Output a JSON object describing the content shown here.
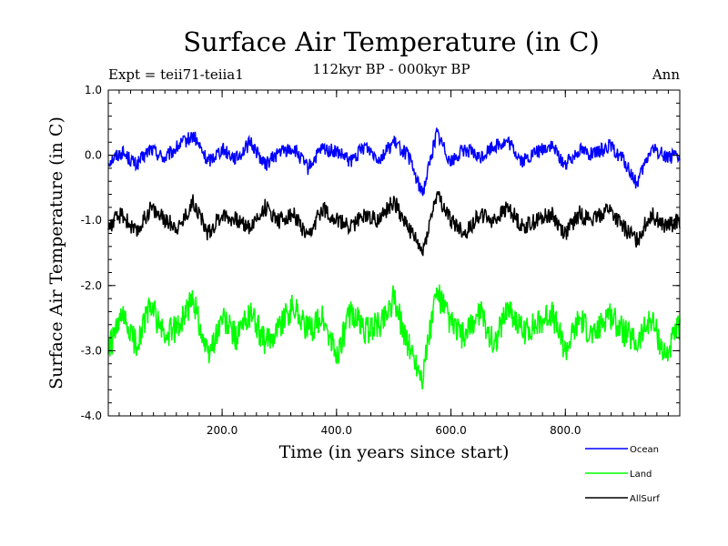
{
  "header": {
    "title": "Surface Air Temperature (in C)",
    "subtitle": "112kyr BP - 000kyr BP",
    "experiment": "Expt = teii71-teiia1",
    "period": "Ann"
  },
  "chart_data": {
    "type": "line",
    "title": "Surface Air Temperature (in C)",
    "subtitle": "112kyr BP - 000kyr BP",
    "xlabel": "Time (in years since start)",
    "ylabel": "Surface Air Temperature (in C)",
    "xlim": [
      1,
      1000
    ],
    "ylim": [
      -4.0,
      1.0
    ],
    "xticks": [
      200,
      400,
      600,
      800
    ],
    "xtick_labels": [
      "200.0",
      "400.0",
      "600.0",
      "800.0"
    ],
    "yticks": [
      1.0,
      0.0,
      -1.0,
      -2.0,
      -3.0,
      -4.0
    ],
    "ytick_labels": [
      "1.0",
      "0.0",
      "-1.0",
      "-2.0",
      "-3.0",
      "-4.0"
    ],
    "grid": false,
    "legend_position": "bottom-right",
    "series": [
      {
        "name": "Ocean",
        "color": "#0000ff",
        "x": [
          1,
          25,
          50,
          75,
          100,
          125,
          150,
          175,
          200,
          225,
          250,
          275,
          300,
          325,
          350,
          375,
          400,
          425,
          450,
          475,
          500,
          525,
          550,
          575,
          600,
          625,
          650,
          675,
          700,
          725,
          750,
          775,
          800,
          825,
          850,
          875,
          900,
          925,
          950,
          975,
          1000
        ],
        "values": [
          -0.1,
          0.05,
          -0.15,
          0.1,
          -0.05,
          0.15,
          0.3,
          -0.1,
          0.1,
          -0.05,
          0.2,
          -0.15,
          0.05,
          0.1,
          -0.2,
          0.1,
          0.05,
          -0.1,
          0.15,
          -0.05,
          0.2,
          0.0,
          -0.6,
          0.35,
          -0.1,
          0.1,
          -0.05,
          0.15,
          0.2,
          -0.1,
          0.05,
          0.15,
          -0.15,
          0.1,
          0.0,
          0.15,
          -0.05,
          -0.45,
          0.1,
          0.0,
          -0.05
        ]
      },
      {
        "name": "Land",
        "color": "#00ff00",
        "x": [
          1,
          25,
          50,
          75,
          100,
          125,
          150,
          175,
          200,
          225,
          250,
          275,
          300,
          325,
          350,
          375,
          400,
          425,
          450,
          475,
          500,
          525,
          550,
          575,
          600,
          625,
          650,
          675,
          700,
          725,
          750,
          775,
          800,
          825,
          850,
          875,
          900,
          925,
          950,
          975,
          1000
        ],
        "values": [
          -3.0,
          -2.5,
          -2.9,
          -2.3,
          -2.8,
          -2.6,
          -2.2,
          -3.1,
          -2.5,
          -2.8,
          -2.4,
          -2.9,
          -2.6,
          -2.3,
          -2.7,
          -2.5,
          -3.1,
          -2.4,
          -2.7,
          -2.6,
          -2.2,
          -2.9,
          -3.4,
          -2.1,
          -2.6,
          -2.8,
          -2.4,
          -2.9,
          -2.3,
          -2.7,
          -2.6,
          -2.4,
          -3.0,
          -2.5,
          -2.8,
          -2.4,
          -2.7,
          -2.9,
          -2.5,
          -3.1,
          -2.6
        ]
      },
      {
        "name": "AllSurf",
        "color": "#000000",
        "x": [
          1,
          25,
          50,
          75,
          100,
          125,
          150,
          175,
          200,
          225,
          250,
          275,
          300,
          325,
          350,
          375,
          400,
          425,
          450,
          475,
          500,
          525,
          550,
          575,
          600,
          625,
          650,
          675,
          700,
          725,
          750,
          775,
          800,
          825,
          850,
          875,
          900,
          925,
          950,
          975,
          1000
        ],
        "values": [
          -1.1,
          -0.9,
          -1.2,
          -0.8,
          -1.0,
          -1.1,
          -0.7,
          -1.2,
          -0.9,
          -1.0,
          -1.1,
          -0.8,
          -1.0,
          -0.9,
          -1.3,
          -0.8,
          -1.0,
          -1.1,
          -0.9,
          -1.0,
          -0.7,
          -1.1,
          -1.5,
          -0.6,
          -1.0,
          -1.2,
          -0.9,
          -1.0,
          -0.8,
          -1.1,
          -1.0,
          -0.9,
          -1.2,
          -0.9,
          -1.0,
          -0.8,
          -1.1,
          -1.3,
          -0.9,
          -1.1,
          -1.0
        ]
      }
    ]
  }
}
